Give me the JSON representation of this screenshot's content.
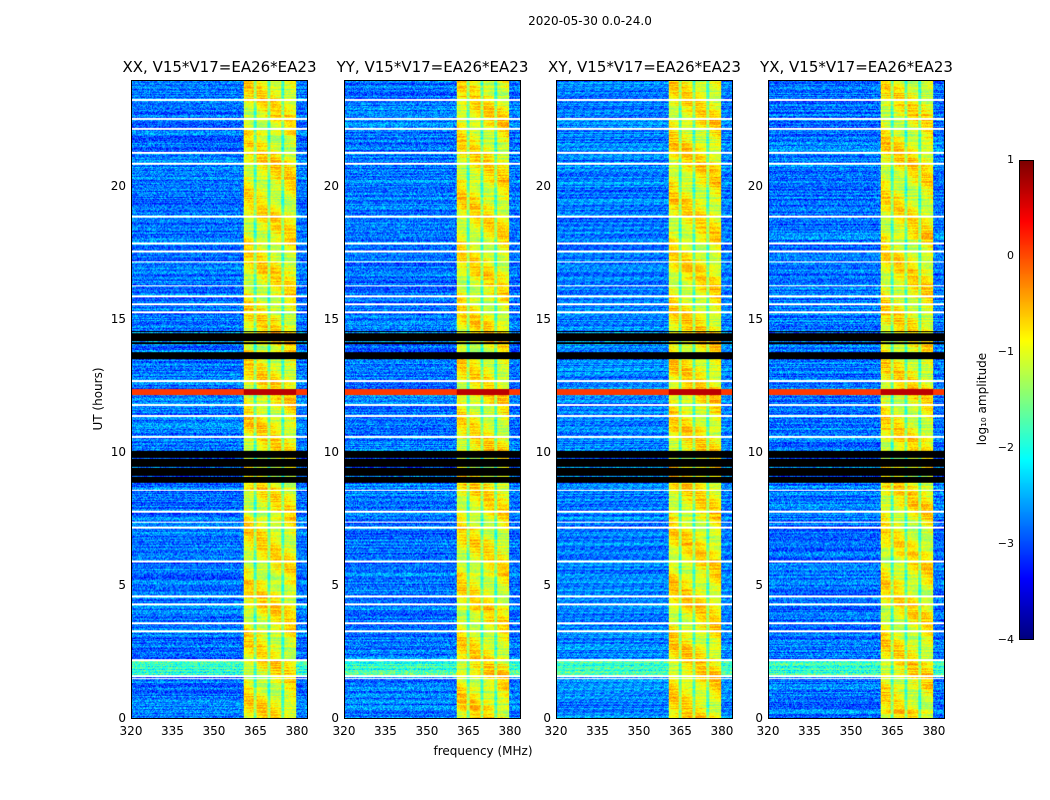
{
  "chart_data": {
    "type": "heatmap",
    "title": "2020-05-30 0.0-24.0",
    "xlabel": "frequency (MHz)",
    "ylabel": "UT (hours)",
    "xlim": [
      320,
      384
    ],
    "ylim": [
      0,
      24
    ],
    "xticks": [
      "320",
      "335",
      "350",
      "365",
      "380"
    ],
    "xtick_values": [
      320,
      335,
      350,
      365,
      380
    ],
    "yticks": [
      "0",
      "5",
      "10",
      "15",
      "20"
    ],
    "ytick_values": [
      0,
      5,
      10,
      15,
      20
    ],
    "panels": [
      {
        "title": "XX, V15*V17=EA26*EA23",
        "seed": 11
      },
      {
        "title": "YY, V15*V17=EA26*EA23",
        "seed": 23
      },
      {
        "title": "XY, V15*V17=EA26*EA23",
        "seed": 37
      },
      {
        "title": "YX, V15*V17=EA26*EA23",
        "seed": 53
      }
    ],
    "rfi_band_mhz": [
      360.5,
      380
    ],
    "rfi_channel_edges_mhz": [
      365,
      370,
      375
    ],
    "background_log10_amplitude": -2.8,
    "rfi_log10_amplitude": -0.9,
    "flagged_black_hours": [
      [
        8.9,
        10.1
      ],
      [
        14.1,
        14.6
      ],
      [
        13.5,
        13.8
      ]
    ],
    "flagged_white_hours": [
      1.5,
      1.6,
      2.2,
      3.3,
      3.6,
      4.3,
      4.6,
      5.9,
      7.2,
      7.4,
      7.8,
      8.6,
      10.6,
      11.4,
      11.8,
      12.7,
      15.3,
      15.6,
      15.9,
      16.3,
      17.2,
      17.6,
      17.9,
      18.9,
      20.9,
      21.3,
      22.2,
      22.6,
      23.3
    ],
    "strong_rfi_hours": [
      [
        12.2,
        12.4
      ]
    ],
    "colorbar": {
      "label": "log₁₀ amplitude",
      "range": [
        -4,
        1
      ],
      "ticks": [
        "1",
        "0",
        "−1",
        "−2",
        "−3",
        "−4"
      ],
      "tick_values": [
        1,
        0,
        -1,
        -2,
        -3,
        -4
      ],
      "colormap": "jet"
    }
  }
}
